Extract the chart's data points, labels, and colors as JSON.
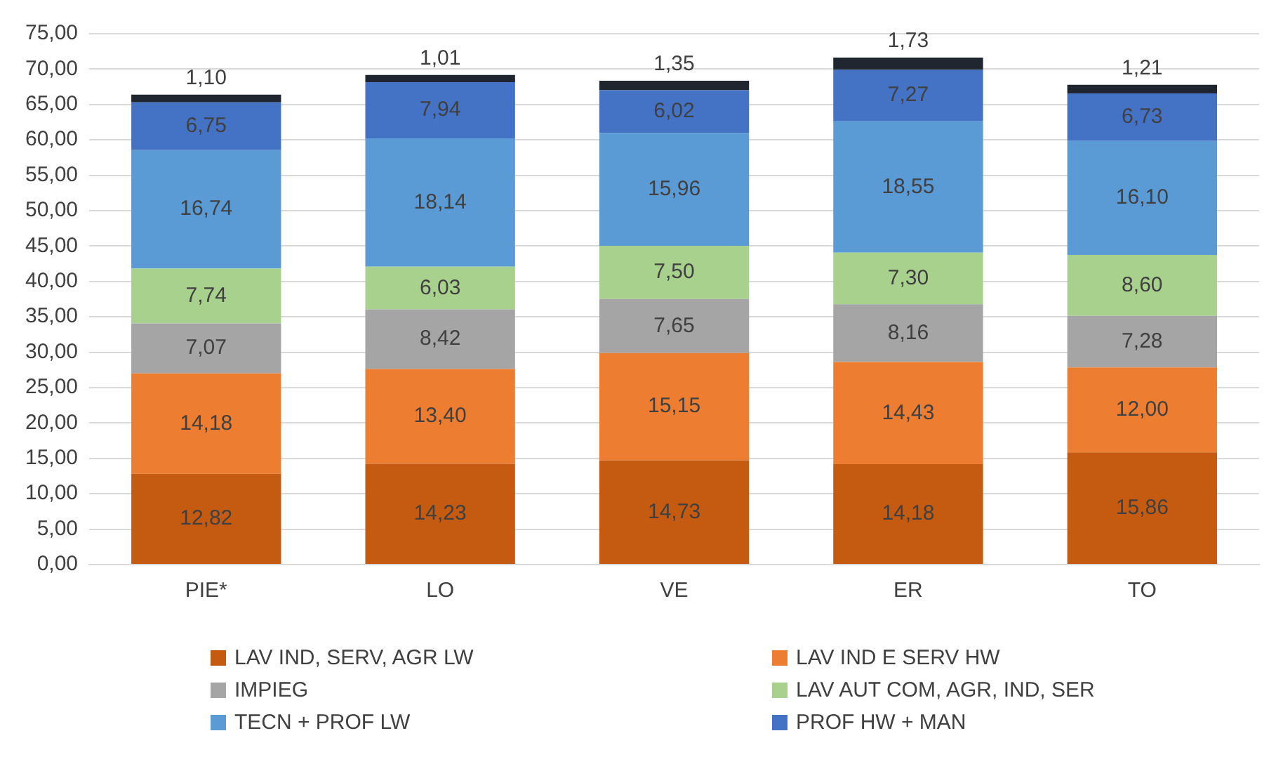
{
  "chart_data": {
    "type": "bar",
    "stacked": true,
    "categories": [
      "PIE*",
      "LO",
      "VE",
      "ER",
      "TO"
    ],
    "ylim": [
      0,
      75
    ],
    "yticks": [
      {
        "value": 0,
        "label": "0,00"
      },
      {
        "value": 5,
        "label": "5,00"
      },
      {
        "value": 10,
        "label": "10,00"
      },
      {
        "value": 15,
        "label": "15,00"
      },
      {
        "value": 20,
        "label": "20,00"
      },
      {
        "value": 25,
        "label": "25,00"
      },
      {
        "value": 30,
        "label": "30,00"
      },
      {
        "value": 35,
        "label": "35,00"
      },
      {
        "value": 40,
        "label": "40,00"
      },
      {
        "value": 45,
        "label": "45,00"
      },
      {
        "value": 50,
        "label": "50,00"
      },
      {
        "value": 55,
        "label": "55,00"
      },
      {
        "value": 60,
        "label": "60,00"
      },
      {
        "value": 65,
        "label": "65,00"
      },
      {
        "value": 70,
        "label": "70,00"
      },
      {
        "value": 75,
        "label": "75,00"
      }
    ],
    "grid": "y",
    "legend": "bottom",
    "series": [
      {
        "name": "LAV IND, SERV, AGR LW",
        "color": "#c55a11",
        "values": [
          12.82,
          14.23,
          14.73,
          14.18,
          15.86
        ],
        "value_labels": [
          "12,82",
          "14,23",
          "14,73",
          "14,18",
          "15,86"
        ]
      },
      {
        "name": "LAV IND E SERV HW",
        "color": "#ed7d31",
        "values": [
          14.18,
          13.4,
          15.15,
          14.43,
          12.0
        ],
        "value_labels": [
          "14,18",
          "13,40",
          "15,15",
          "14,43",
          "12,00"
        ]
      },
      {
        "name": "IMPIEG",
        "color": "#a5a5a5",
        "values": [
          7.07,
          8.42,
          7.65,
          8.16,
          7.28
        ],
        "value_labels": [
          "7,07",
          "8,42",
          "7,65",
          "8,16",
          "7,28"
        ]
      },
      {
        "name": "LAV AUT COM, AGR, IND, SER",
        "color": "#a9d18e",
        "values": [
          7.74,
          6.03,
          7.5,
          7.3,
          8.6
        ],
        "value_labels": [
          "7,74",
          "6,03",
          "7,50",
          "7,30",
          "8,60"
        ]
      },
      {
        "name": "TECN + PROF LW",
        "color": "#5b9bd5",
        "values": [
          16.74,
          18.14,
          15.96,
          18.55,
          16.1
        ],
        "value_labels": [
          "16,74",
          "18,14",
          "15,96",
          "18,55",
          "16,10"
        ]
      },
      {
        "name": "PROF HW + MAN",
        "color": "#4472c4",
        "values": [
          6.75,
          7.94,
          6.02,
          7.27,
          6.73
        ],
        "value_labels": [
          "6,75",
          "7,94",
          "6,02",
          "7,27",
          "6,73"
        ]
      },
      {
        "color": "#1f2630",
        "values": [
          1.1,
          1.01,
          1.35,
          1.73,
          1.21
        ],
        "value_labels": [
          "1,10",
          "1,01",
          "1,35",
          "1,73",
          "1,21"
        ]
      }
    ]
  }
}
